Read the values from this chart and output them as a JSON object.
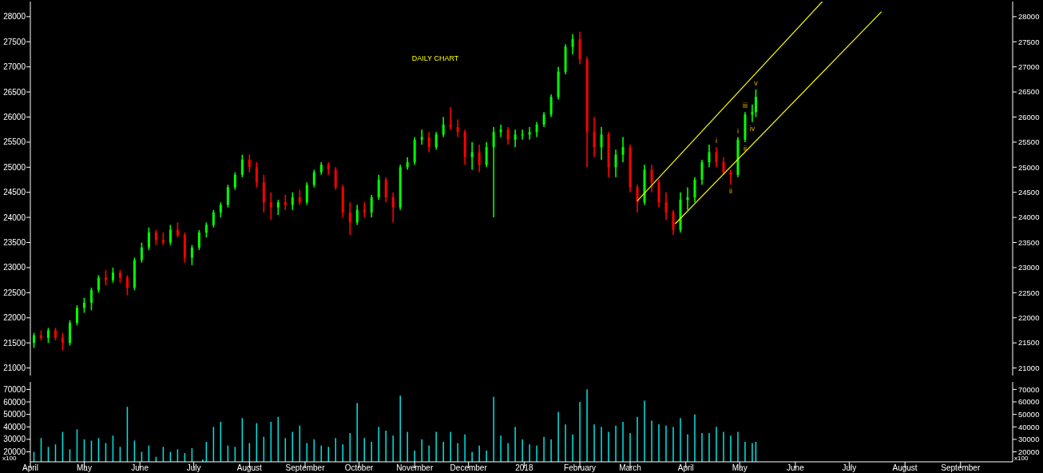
{
  "chart_data": [
    {
      "type": "candlestick",
      "title": "DAILY CHART",
      "x": [
        "2017-04-03",
        "2017-04-07",
        "2017-04-11",
        "2017-04-15",
        "2017-04-19",
        "2017-04-23",
        "2017-04-27",
        "2017-05-01",
        "2017-05-05",
        "2017-05-09",
        "2017-05-13",
        "2017-05-17",
        "2017-05-21",
        "2017-05-25",
        "2017-05-29",
        "2017-06-02",
        "2017-06-06",
        "2017-06-10",
        "2017-06-14",
        "2017-06-18",
        "2017-06-22",
        "2017-06-26",
        "2017-06-30",
        "2017-07-04",
        "2017-07-08",
        "2017-07-12",
        "2017-07-16",
        "2017-07-20",
        "2017-07-24",
        "2017-07-28",
        "2017-08-01",
        "2017-08-05",
        "2017-08-09",
        "2017-08-13",
        "2017-08-17",
        "2017-08-21",
        "2017-08-25",
        "2017-08-29",
        "2017-09-02",
        "2017-09-06",
        "2017-09-10",
        "2017-09-14",
        "2017-09-18",
        "2017-09-22",
        "2017-09-26",
        "2017-09-30",
        "2017-10-04",
        "2017-10-08",
        "2017-10-12",
        "2017-10-16",
        "2017-10-20",
        "2017-10-24",
        "2017-10-28",
        "2017-11-01",
        "2017-11-05",
        "2017-11-09",
        "2017-11-13",
        "2017-11-17",
        "2017-11-21",
        "2017-11-25",
        "2017-11-29",
        "2017-12-03",
        "2017-12-07",
        "2017-12-11",
        "2017-12-15",
        "2017-12-19",
        "2017-12-23",
        "2017-12-27",
        "2017-12-31",
        "2018-01-04",
        "2018-01-08",
        "2018-01-12",
        "2018-01-16",
        "2018-01-20",
        "2018-01-24",
        "2018-01-28",
        "2018-02-01",
        "2018-02-05",
        "2018-02-09",
        "2018-02-13",
        "2018-02-17",
        "2018-02-21",
        "2018-02-25",
        "2018-03-01",
        "2018-03-05",
        "2018-03-09",
        "2018-03-13",
        "2018-03-17",
        "2018-03-21",
        "2018-03-25",
        "2018-03-29",
        "2018-04-02",
        "2018-04-06",
        "2018-04-10",
        "2018-04-14",
        "2018-04-18",
        "2018-04-22",
        "2018-04-26",
        "2018-04-30",
        "2018-05-04",
        "2018-05-08",
        "2018-05-10"
      ],
      "ohlc": [
        [
          21500,
          21700,
          21400,
          21650
        ],
        [
          21650,
          21750,
          21550,
          21600
        ],
        [
          21600,
          21800,
          21500,
          21750
        ],
        [
          21750,
          21800,
          21550,
          21600
        ],
        [
          21600,
          21700,
          21350,
          21500
        ],
        [
          21500,
          21950,
          21450,
          21900
        ],
        [
          21900,
          22250,
          21850,
          22200
        ],
        [
          22200,
          22400,
          22100,
          22300
        ],
        [
          22300,
          22600,
          22150,
          22550
        ],
        [
          22550,
          22850,
          22500,
          22800
        ],
        [
          22800,
          22950,
          22650,
          22750
        ],
        [
          22750,
          23000,
          22700,
          22900
        ],
        [
          22900,
          22950,
          22700,
          22800
        ],
        [
          22800,
          22850,
          22450,
          22600
        ],
        [
          22600,
          23200,
          22550,
          23150
        ],
        [
          23150,
          23500,
          23100,
          23400
        ],
        [
          23400,
          23800,
          23350,
          23700
        ],
        [
          23700,
          23750,
          23450,
          23550
        ],
        [
          23550,
          23700,
          23450,
          23500
        ],
        [
          23500,
          23850,
          23450,
          23750
        ],
        [
          23750,
          23900,
          23600,
          23650
        ],
        [
          23650,
          23700,
          23100,
          23200
        ],
        [
          23200,
          23450,
          23050,
          23400
        ],
        [
          23400,
          23750,
          23350,
          23700
        ],
        [
          23700,
          23900,
          23600,
          23850
        ],
        [
          23850,
          24150,
          23800,
          24100
        ],
        [
          24100,
          24300,
          24000,
          24250
        ],
        [
          24250,
          24650,
          24200,
          24600
        ],
        [
          24600,
          24900,
          24550,
          24850
        ],
        [
          24850,
          25250,
          24800,
          25150
        ],
        [
          25150,
          25250,
          24900,
          25000
        ],
        [
          25000,
          25100,
          24600,
          24700
        ],
        [
          24700,
          24850,
          24100,
          24300
        ],
        [
          24300,
          24500,
          23950,
          24200
        ],
        [
          24200,
          24350,
          24050,
          24300
        ],
        [
          24300,
          24450,
          24150,
          24250
        ],
        [
          24250,
          24500,
          24150,
          24400
        ],
        [
          24400,
          24550,
          24250,
          24300
        ],
        [
          24300,
          24700,
          24250,
          24650
        ],
        [
          24650,
          24950,
          24600,
          24900
        ],
        [
          24900,
          25100,
          24850,
          25050
        ],
        [
          25050,
          25100,
          24850,
          24950
        ],
        [
          24950,
          25000,
          24550,
          24600
        ],
        [
          24600,
          24650,
          24000,
          24100
        ],
        [
          24100,
          24300,
          23650,
          23900
        ],
        [
          23900,
          24250,
          23850,
          24150
        ],
        [
          24150,
          24300,
          24000,
          24100
        ],
        [
          24100,
          24450,
          24000,
          24400
        ],
        [
          24400,
          24850,
          24350,
          24750
        ],
        [
          24750,
          24800,
          24300,
          24400
        ],
        [
          24400,
          24500,
          23900,
          24200
        ],
        [
          24200,
          25050,
          24150,
          25000
        ],
        [
          25000,
          25200,
          24950,
          25100
        ],
        [
          25100,
          25600,
          25050,
          25550
        ],
        [
          25550,
          25750,
          25450,
          25600
        ],
        [
          25600,
          25700,
          25300,
          25400
        ],
        [
          25400,
          25700,
          25350,
          25650
        ],
        [
          25650,
          26000,
          25600,
          25850
        ],
        [
          25850,
          26200,
          25750,
          25800
        ],
        [
          25800,
          25950,
          25600,
          25700
        ],
        [
          25700,
          25750,
          25050,
          25200
        ],
        [
          25200,
          25500,
          24950,
          25300
        ],
        [
          25300,
          25450,
          24900,
          25050
        ],
        [
          25050,
          25500,
          25000,
          25400
        ],
        [
          25400,
          25800,
          24000,
          25700
        ],
        [
          25700,
          25850,
          25600,
          25750
        ],
        [
          25750,
          25800,
          25450,
          25550
        ],
        [
          25550,
          25750,
          25400,
          25650
        ],
        [
          25650,
          25750,
          25550,
          25650
        ],
        [
          25650,
          25800,
          25550,
          25700
        ],
        [
          25700,
          25900,
          25600,
          25850
        ],
        [
          25850,
          26100,
          25800,
          26050
        ],
        [
          26050,
          26450,
          26000,
          26400
        ],
        [
          26400,
          27000,
          26350,
          26900
        ],
        [
          26900,
          27450,
          26850,
          27400
        ],
        [
          27400,
          27650,
          27250,
          27550
        ],
        [
          27550,
          27700,
          27050,
          27150
        ],
        [
          27150,
          27200,
          25000,
          25700
        ],
        [
          25700,
          26000,
          25200,
          25400
        ],
        [
          25400,
          25800,
          25150,
          25650
        ],
        [
          25650,
          25700,
          24800,
          25000
        ],
        [
          25000,
          25350,
          24800,
          25250
        ],
        [
          25250,
          25600,
          25100,
          25400
        ],
        [
          25400,
          25450,
          24500,
          24600
        ],
        [
          24600,
          24650,
          24100,
          24300
        ],
        [
          24300,
          25050,
          24250,
          24950
        ],
        [
          24950,
          25050,
          24500,
          24700
        ],
        [
          24700,
          24750,
          24200,
          24300
        ],
        [
          24300,
          24500,
          23950,
          24100
        ],
        [
          24100,
          24150,
          23650,
          23750
        ],
        [
          23750,
          24500,
          23700,
          24350
        ],
        [
          24350,
          24600,
          24150,
          24400
        ],
        [
          24400,
          24800,
          24300,
          24750
        ],
        [
          24750,
          25150,
          24650,
          25100
        ],
        [
          25100,
          25450,
          25000,
          25300
        ],
        [
          25300,
          25400,
          25000,
          25100
        ],
        [
          25100,
          25200,
          24850,
          24900
        ],
        [
          24900,
          24950,
          24650,
          24850
        ],
        [
          24850,
          25600,
          24800,
          25550
        ],
        [
          25550,
          26100,
          25500,
          26050
        ],
        [
          26050,
          26250,
          25900,
          26100
        ],
        [
          26100,
          26550,
          26000,
          26400
        ]
      ],
      "series": [
        {
          "type": "line",
          "color": "#ffff00",
          "x": [
            "2018-03-05",
            "2018-06-16"
          ],
          "values": [
            24330,
            28300
          ]
        },
        {
          "type": "line",
          "color": "#ffff00",
          "x": [
            "2018-03-26",
            "2018-07-19"
          ],
          "values": [
            23870,
            28100
          ]
        }
      ],
      "annotations": [
        {
          "text": "i",
          "x": "2018-04-18",
          "y": 25400
        },
        {
          "text": "ii",
          "x": "2018-04-26",
          "y": 24650
        },
        {
          "text": "i",
          "x": "2018-04-30",
          "y": 25600
        },
        {
          "text": "ii",
          "x": "2018-05-04",
          "y": 25500
        },
        {
          "text": "iii",
          "x": "2018-05-04",
          "y": 26100
        },
        {
          "text": "iv",
          "x": "2018-05-08",
          "y": 25900
        },
        {
          "text": "v",
          "x": "2018-05-10",
          "y": 26550
        }
      ],
      "xlim": [
        "2017-04-01",
        "2018-09-30"
      ],
      "ylim": [
        20850,
        28300
      ],
      "yticks": [
        21000,
        21500,
        22000,
        22500,
        23000,
        23500,
        24000,
        24500,
        25000,
        25500,
        26000,
        26500,
        27000,
        27500,
        28000
      ],
      "y2lim": [
        20850,
        28300
      ],
      "y2ticks": [
        21000,
        21500,
        22000,
        22500,
        23000,
        23500,
        24000,
        24500,
        25000,
        25500,
        26000,
        26500,
        27000,
        27500,
        28000
      ],
      "tick_labels": "y"
    },
    {
      "type": "bar",
      "color": "#00e5e5",
      "ylabel": "x100",
      "y2label": "x100",
      "x": [
        "2017-04-03",
        "2017-04-07",
        "2017-04-11",
        "2017-04-15",
        "2017-04-19",
        "2017-04-23",
        "2017-04-27",
        "2017-05-01",
        "2017-05-05",
        "2017-05-09",
        "2017-05-13",
        "2017-05-17",
        "2017-05-21",
        "2017-05-25",
        "2017-05-29",
        "2017-06-02",
        "2017-06-06",
        "2017-06-10",
        "2017-06-14",
        "2017-06-18",
        "2017-06-22",
        "2017-06-26",
        "2017-06-30",
        "2017-07-06",
        "2017-07-08",
        "2017-07-12",
        "2017-07-16",
        "2017-07-20",
        "2017-07-24",
        "2017-07-28",
        "2017-08-01",
        "2017-08-05",
        "2017-08-09",
        "2017-08-13",
        "2017-08-17",
        "2017-08-21",
        "2017-08-25",
        "2017-08-29",
        "2017-09-02",
        "2017-09-06",
        "2017-09-10",
        "2017-09-14",
        "2017-09-18",
        "2017-09-22",
        "2017-09-26",
        "2017-09-30",
        "2017-10-04",
        "2017-10-08",
        "2017-10-12",
        "2017-10-16",
        "2017-10-20",
        "2017-10-24",
        "2017-10-28",
        "2017-11-01",
        "2017-11-05",
        "2017-11-09",
        "2017-11-13",
        "2017-11-17",
        "2017-11-21",
        "2017-11-25",
        "2017-11-29",
        "2017-12-03",
        "2017-12-07",
        "2017-12-11",
        "2017-12-15",
        "2017-12-19",
        "2017-12-23",
        "2017-12-27",
        "2017-12-31",
        "2018-01-04",
        "2018-01-08",
        "2018-01-12",
        "2018-01-16",
        "2018-01-20",
        "2018-01-24",
        "2018-01-28",
        "2018-02-01",
        "2018-02-05",
        "2018-02-09",
        "2018-02-13",
        "2018-02-17",
        "2018-02-21",
        "2018-02-25",
        "2018-03-01",
        "2018-03-05",
        "2018-03-09",
        "2018-03-13",
        "2018-03-17",
        "2018-03-21",
        "2018-03-25",
        "2018-03-29",
        "2018-04-02",
        "2018-04-06",
        "2018-04-10",
        "2018-04-14",
        "2018-04-18",
        "2018-04-22",
        "2018-04-26",
        "2018-04-30",
        "2018-05-04",
        "2018-05-08",
        "2018-05-10"
      ],
      "values": [
        20000,
        31000,
        24000,
        26000,
        36000,
        22000,
        38000,
        30000,
        29000,
        31000,
        27000,
        33000,
        24000,
        56000,
        29000,
        20000,
        25000,
        16000,
        24000,
        20000,
        22000,
        19000,
        23000,
        14000,
        28000,
        40000,
        44000,
        25000,
        24000,
        47000,
        27000,
        43000,
        32000,
        44000,
        48000,
        31000,
        36000,
        41000,
        27000,
        30000,
        25000,
        24000,
        31000,
        26000,
        35000,
        59000,
        31000,
        28000,
        40000,
        37000,
        33000,
        65000,
        36000,
        21000,
        30000,
        25000,
        36000,
        28000,
        36000,
        27000,
        34000,
        20000,
        25000,
        21000,
        64000,
        33000,
        27000,
        40000,
        30000,
        26000,
        25000,
        32000,
        30000,
        52000,
        42000,
        34000,
        60000,
        70000,
        42000,
        40000,
        36000,
        41000,
        44000,
        35000,
        48000,
        61000,
        45000,
        42000,
        41000,
        40000,
        47000,
        34000,
        50000,
        35000,
        35000,
        40000,
        36000,
        33000,
        36000,
        28000,
        27000,
        28000
      ],
      "xlim": [
        "2017-04-01",
        "2018-09-30"
      ],
      "xticks": [
        {
          "value": "2017-04-01",
          "label": "April"
        },
        {
          "value": "2017-05-01",
          "label": "May"
        },
        {
          "value": "2017-06-01",
          "label": "June"
        },
        {
          "value": "2017-07-01",
          "label": "July"
        },
        {
          "value": "2017-08-01",
          "label": "August"
        },
        {
          "value": "2017-09-01",
          "label": "September"
        },
        {
          "value": "2017-10-01",
          "label": "October"
        },
        {
          "value": "2017-11-01",
          "label": "November"
        },
        {
          "value": "2017-12-01",
          "label": "December"
        },
        {
          "value": "2018-01-01",
          "label": "2018"
        },
        {
          "value": "2018-02-01",
          "label": "February"
        },
        {
          "value": "2018-03-01",
          "label": "March"
        },
        {
          "value": "2018-04-01",
          "label": "April"
        },
        {
          "value": "2018-05-01",
          "label": "May"
        },
        {
          "value": "2018-06-01",
          "label": "June"
        },
        {
          "value": "2018-07-01",
          "label": "July"
        },
        {
          "value": "2018-08-01",
          "label": "August"
        },
        {
          "value": "2018-09-01",
          "label": "September"
        }
      ],
      "ylim": [
        12000,
        76000
      ],
      "yticks": [
        20000,
        30000,
        40000,
        50000,
        60000,
        70000
      ],
      "y2lim": [
        12000,
        76000
      ],
      "y2ticks": [
        20000,
        30000,
        40000,
        50000,
        60000,
        70000
      ]
    }
  ]
}
